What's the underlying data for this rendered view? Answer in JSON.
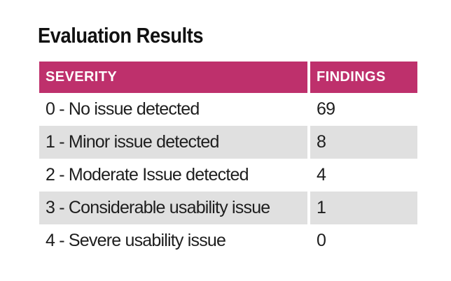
{
  "title": "Evaluation Results",
  "colors": {
    "page_bg": "#ffffff",
    "title_text": "#111111",
    "header_bg": "#be306c",
    "header_text": "#ffffff",
    "row_bg": "#ffffff",
    "row_alt_bg": "#e0e0e0",
    "cell_text": "#1e1e1e"
  },
  "table": {
    "header": {
      "severity": "SEVERITY",
      "findings": "FINDINGS"
    },
    "rows": [
      {
        "severity": "0 - No issue detected",
        "findings": "69"
      },
      {
        "severity": "1 - Minor issue detected",
        "findings": "8"
      },
      {
        "severity": "2 - Moderate Issue detected",
        "findings": "4"
      },
      {
        "severity": "3 - Considerable usability issue",
        "findings": "1"
      },
      {
        "severity": "4 - Severe usability issue",
        "findings": "0"
      }
    ]
  },
  "chart_data": {
    "type": "table",
    "title": "Evaluation Results",
    "columns": [
      "SEVERITY",
      "FINDINGS"
    ],
    "categories": [
      "0 - No issue detected",
      "1 - Minor issue detected",
      "2 - Moderate Issue detected",
      "3 - Considerable usability issue",
      "4 - Severe usability issue"
    ],
    "values": [
      69,
      8,
      4,
      1,
      0
    ],
    "legend_position": "none",
    "grid": false
  }
}
